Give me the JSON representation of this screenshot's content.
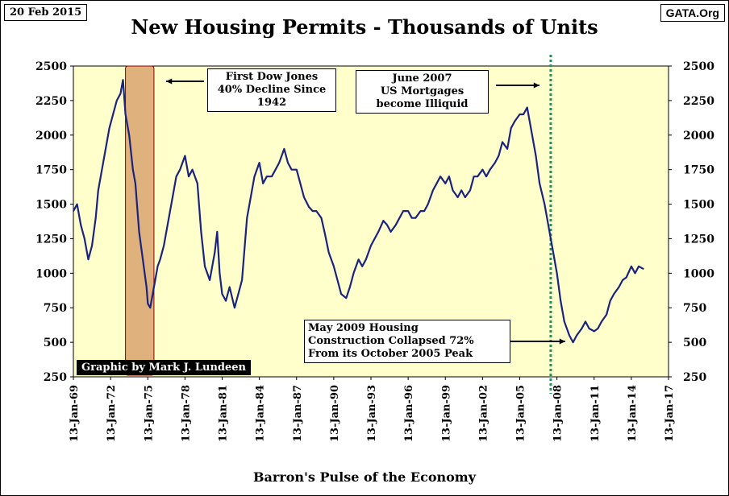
{
  "header": {
    "date": "20 Feb 2015",
    "source": "GATA.Org",
    "title": "New Housing Permits - Thousands of Units"
  },
  "footer": {
    "label": "Barron's Pulse of the Economy"
  },
  "credit": "Graphic by Mark J. Lundeen",
  "colors": {
    "plot_bg": "#ffffcc",
    "line": "#1a237e",
    "shade": "#d9a46f",
    "dotted": "#2e8b57"
  },
  "annotations": {
    "dow_decline": [
      "First Dow Jones",
      "40% Decline Since",
      "1942"
    ],
    "june_2007": [
      "June 2007",
      "US Mortgages",
      "become Illiquid"
    ],
    "may_2009": [
      "May 2009  Housing",
      "Construction Collapsed 72%",
      "From its October 2005  Peak"
    ]
  },
  "chart_data": {
    "type": "line",
    "title": "New Housing Permits - Thousands of Units",
    "xlabel": "",
    "ylabel": "",
    "ylim": [
      250,
      2500
    ],
    "xlim": [
      1969.0,
      2017.0
    ],
    "y_ticks": [
      250,
      500,
      750,
      1000,
      1250,
      1500,
      1750,
      2000,
      2250,
      2500
    ],
    "x_ticks": [
      "13-Jan-69",
      "13-Jan-72",
      "13-Jan-75",
      "13-Jan-78",
      "13-Jan-81",
      "13-Jan-84",
      "13-Jan-87",
      "13-Jan-90",
      "13-Jan-93",
      "13-Jan-96",
      "13-Jan-99",
      "13-Jan-02",
      "13-Jan-05",
      "13-Jan-08",
      "13-Jan-11",
      "13-Jan-14",
      "13-Jan-17"
    ],
    "x_tick_years": [
      1969,
      1972,
      1975,
      1978,
      1981,
      1984,
      1987,
      1990,
      1993,
      1996,
      1999,
      2002,
      2005,
      2008,
      2011,
      2014,
      2017
    ],
    "grid": false,
    "shaded_range": [
      1973.2,
      1975.5
    ],
    "vline_year": 2007.5,
    "series": [
      {
        "x": [
          1969.0,
          1969.3,
          1969.6,
          1969.9,
          1970.2,
          1970.5,
          1970.8,
          1971.0,
          1971.3,
          1971.6,
          1971.9,
          1972.2,
          1972.5,
          1972.8,
          1973.0,
          1973.2,
          1973.5,
          1973.8,
          1974.0,
          1974.3,
          1974.6,
          1974.9,
          1975.0,
          1975.2,
          1975.5,
          1975.8,
          1976.0,
          1976.3,
          1976.6,
          1977.0,
          1977.3,
          1977.6,
          1978.0,
          1978.3,
          1978.6,
          1979.0,
          1979.3,
          1979.6,
          1980.0,
          1980.2,
          1980.4,
          1980.6,
          1980.8,
          1981.0,
          1981.3,
          1981.6,
          1982.0,
          1982.3,
          1982.6,
          1983.0,
          1983.3,
          1983.6,
          1984.0,
          1984.3,
          1984.6,
          1985.0,
          1985.3,
          1985.6,
          1986.0,
          1986.3,
          1986.6,
          1987.0,
          1987.3,
          1987.6,
          1988.0,
          1988.3,
          1988.6,
          1989.0,
          1989.3,
          1989.6,
          1990.0,
          1990.3,
          1990.6,
          1991.0,
          1991.3,
          1991.6,
          1992.0,
          1992.3,
          1992.6,
          1993.0,
          1993.3,
          1993.6,
          1994.0,
          1994.3,
          1994.6,
          1995.0,
          1995.3,
          1995.6,
          1996.0,
          1996.3,
          1996.6,
          1997.0,
          1997.3,
          1997.6,
          1998.0,
          1998.3,
          1998.6,
          1999.0,
          1999.3,
          1999.6,
          2000.0,
          2000.3,
          2000.6,
          2001.0,
          2001.3,
          2001.6,
          2002.0,
          2002.3,
          2002.6,
          2003.0,
          2003.3,
          2003.6,
          2004.0,
          2004.3,
          2004.6,
          2005.0,
          2005.3,
          2005.6,
          2005.8,
          2006.0,
          2006.3,
          2006.6,
          2007.0,
          2007.3,
          2007.6,
          2008.0,
          2008.3,
          2008.6,
          2009.0,
          2009.3,
          2009.6,
          2010.0,
          2010.3,
          2010.6,
          2011.0,
          2011.3,
          2011.6,
          2012.0,
          2012.3,
          2012.6,
          2013.0,
          2013.3,
          2013.6,
          2014.0,
          2014.3,
          2014.6,
          2015.0
        ],
        "values": [
          1450,
          1500,
          1350,
          1250,
          1100,
          1200,
          1400,
          1600,
          1750,
          1900,
          2050,
          2150,
          2250,
          2300,
          2400,
          2150,
          2000,
          1750,
          1650,
          1300,
          1100,
          900,
          780,
          750,
          900,
          1050,
          1100,
          1200,
          1350,
          1550,
          1700,
          1750,
          1850,
          1700,
          1750,
          1650,
          1300,
          1050,
          950,
          1050,
          1150,
          1300,
          1000,
          850,
          800,
          900,
          750,
          850,
          950,
          1400,
          1550,
          1700,
          1800,
          1650,
          1700,
          1700,
          1750,
          1800,
          1900,
          1800,
          1750,
          1750,
          1650,
          1550,
          1480,
          1450,
          1450,
          1400,
          1280,
          1150,
          1050,
          950,
          850,
          820,
          900,
          1000,
          1100,
          1050,
          1100,
          1200,
          1250,
          1300,
          1380,
          1350,
          1300,
          1350,
          1400,
          1450,
          1450,
          1400,
          1400,
          1450,
          1450,
          1500,
          1600,
          1650,
          1700,
          1650,
          1700,
          1600,
          1550,
          1600,
          1550,
          1600,
          1700,
          1700,
          1750,
          1700,
          1750,
          1800,
          1850,
          1950,
          1900,
          2050,
          2100,
          2150,
          2150,
          2200,
          2100,
          2000,
          1850,
          1650,
          1500,
          1350,
          1200,
          1000,
          800,
          650,
          550,
          500,
          550,
          600,
          650,
          600,
          580,
          600,
          650,
          700,
          800,
          850,
          900,
          950,
          970,
          1050,
          1000,
          1050,
          1030
        ],
        "name": ""
      }
    ]
  }
}
